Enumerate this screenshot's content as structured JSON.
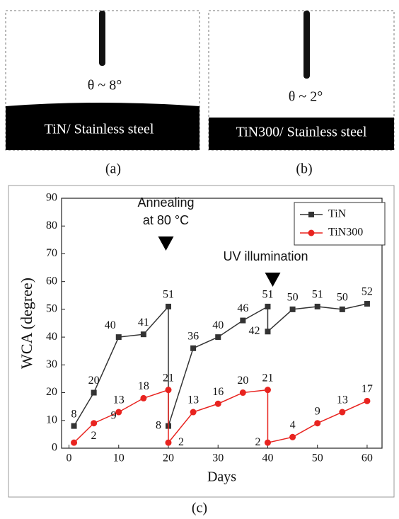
{
  "panels": [
    {
      "angle": "θ ~ 8°",
      "substrate": "TiN/ Stainless steel",
      "label": "(a)"
    },
    {
      "angle": "θ ~ 2°",
      "substrate": "TiN300/ Stainless steel",
      "label": "(b)"
    }
  ],
  "chart_label": "(c)",
  "chart_data": {
    "type": "line",
    "x_label": "Days",
    "y_label": "WCA (degree)",
    "xlim": [
      -1.5,
      63
    ],
    "ylim": [
      0,
      90
    ],
    "xticks": [
      0,
      10,
      20,
      30,
      40,
      50,
      60
    ],
    "yticks": [
      0,
      10,
      20,
      30,
      40,
      50,
      60,
      70,
      80,
      90
    ],
    "legend": "upper right",
    "annotations": [
      [
        "Annealing",
        "at 80 °C"
      ],
      [
        "UV illumination"
      ]
    ],
    "series": [
      {
        "name": "TiN",
        "color": "#333333",
        "marker": "square",
        "x": [
          1,
          5,
          10,
          15,
          20,
          20,
          25,
          30,
          35,
          40,
          40,
          45,
          50,
          55,
          60
        ],
        "values": [
          8,
          20,
          40,
          41,
          51,
          8,
          36,
          40,
          46,
          51,
          42,
          50,
          51,
          50,
          52
        ]
      },
      {
        "name": "TiN300",
        "color": "#e8231f",
        "marker": "circle",
        "x": [
          1,
          5,
          10,
          15,
          20,
          20,
          25,
          30,
          35,
          40,
          40,
          45,
          50,
          55,
          60
        ],
        "values": [
          2,
          9,
          13,
          18,
          21,
          2,
          13,
          16,
          20,
          21,
          2,
          4,
          9,
          13,
          17
        ]
      }
    ]
  }
}
